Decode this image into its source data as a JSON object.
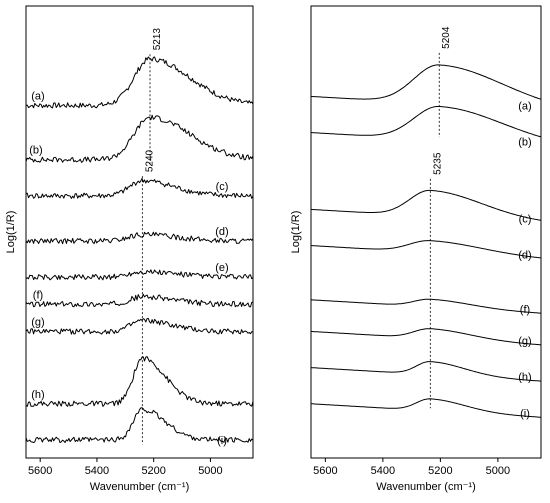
{
  "chart_data": [
    {
      "type": "line",
      "panel": "left",
      "xlabel": "Wavenumber (cm⁻¹)",
      "ylabel": "Log(1/R)",
      "xlim": [
        5650,
        4850
      ],
      "x_reversed": true,
      "x_ticks": [
        "5600",
        "5400",
        "5200",
        "5000"
      ],
      "noisy": true,
      "peak_markers": [
        {
          "label": "5213",
          "x": 5213
        },
        {
          "label": "5240",
          "x": 5240
        }
      ],
      "series": [
        {
          "name": "(a)",
          "baseline": 0.78,
          "peak_x": 5213,
          "height": 0.86,
          "width": 70
        },
        {
          "name": "(b)",
          "baseline": 0.66,
          "peak_x": 5213,
          "height": 0.78,
          "width": 70
        },
        {
          "name": "(c)",
          "baseline": 0.58,
          "peak_x": 5240,
          "height": 0.28,
          "width": 55
        },
        {
          "name": "(d)",
          "baseline": 0.48,
          "peak_x": 5240,
          "height": 0.12,
          "width": 60
        },
        {
          "name": "(e)",
          "baseline": 0.4,
          "peak_x": 5240,
          "height": 0.1,
          "width": 60
        },
        {
          "name": "(f)",
          "baseline": 0.34,
          "peak_x": 5240,
          "height": 0.14,
          "width": 55
        },
        {
          "name": "(g)",
          "baseline": 0.28,
          "peak_x": 5240,
          "height": 0.2,
          "width": 50
        },
        {
          "name": "(h)",
          "baseline": 0.12,
          "peak_x": 5240,
          "height": 0.84,
          "width": 40
        },
        {
          "name": "(i)",
          "baseline": 0.04,
          "peak_x": 5240,
          "height": 0.56,
          "width": 40
        }
      ]
    },
    {
      "type": "line",
      "panel": "right",
      "xlabel": "Wavenumber (cm⁻¹)",
      "ylabel": "Log(1/R)",
      "xlim": [
        5650,
        4850
      ],
      "x_reversed": true,
      "x_ticks": [
        "5600",
        "5400",
        "5200",
        "5000"
      ],
      "noisy": false,
      "peak_markers": [
        {
          "label": "5204",
          "x": 5204
        },
        {
          "label": "5235",
          "x": 5235
        }
      ],
      "series": [
        {
          "name": "(a)",
          "baseline": 0.8,
          "peak_x": 5204,
          "height": 0.72,
          "width": 110
        },
        {
          "name": "(b)",
          "baseline": 0.72,
          "peak_x": 5204,
          "height": 0.62,
          "width": 110
        },
        {
          "name": "(c)",
          "baseline": 0.55,
          "peak_x": 5235,
          "height": 0.48,
          "width": 90
        },
        {
          "name": "(d)",
          "baseline": 0.47,
          "peak_x": 5235,
          "height": 0.22,
          "width": 90
        },
        {
          "name": "(f)",
          "baseline": 0.35,
          "peak_x": 5235,
          "height": 0.14,
          "width": 70
        },
        {
          "name": "(g)",
          "baseline": 0.28,
          "peak_x": 5235,
          "height": 0.18,
          "width": 70
        },
        {
          "name": "(h)",
          "baseline": 0.2,
          "peak_x": 5235,
          "height": 0.24,
          "width": 60
        },
        {
          "name": "(i)",
          "baseline": 0.12,
          "peak_x": 5235,
          "height": 0.22,
          "width": 60
        }
      ]
    }
  ]
}
